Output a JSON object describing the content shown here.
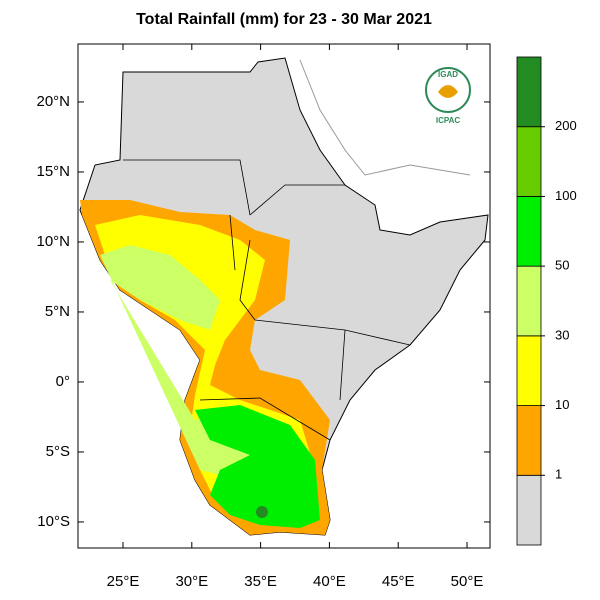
{
  "title": "Total Rainfall (mm) for 23 - 30 Mar 2021",
  "map": {
    "lon_range": [
      21.73,
      51.67
    ],
    "lat_range": [
      -11.86,
      24.14
    ],
    "lon_ticks": [
      {
        "value": 25,
        "label": "25°E"
      },
      {
        "value": 30,
        "label": "30°E"
      },
      {
        "value": 35,
        "label": "35°E"
      },
      {
        "value": 40,
        "label": "40°E"
      },
      {
        "value": 45,
        "label": "45°E"
      },
      {
        "value": 50,
        "label": "50°E"
      }
    ],
    "lat_ticks": [
      {
        "value": 20,
        "label": "20°N"
      },
      {
        "value": 15,
        "label": "15°N"
      },
      {
        "value": 10,
        "label": "10°N"
      },
      {
        "value": 5,
        "label": "5°N"
      },
      {
        "value": 0,
        "label": "0°"
      },
      {
        "value": -5,
        "label": "5°S"
      },
      {
        "value": -10,
        "label": "10°S"
      }
    ]
  },
  "colorbar": {
    "levels": [
      1,
      10,
      30,
      50,
      100,
      200
    ],
    "colors": [
      "#d9d9d9",
      "#ffa500",
      "#ffff00",
      "#ccff66",
      "#00ee00",
      "#66cc00",
      "#228b22"
    ]
  },
  "logo": {
    "top": "IGAD",
    "bottom": "ICPAC"
  }
}
